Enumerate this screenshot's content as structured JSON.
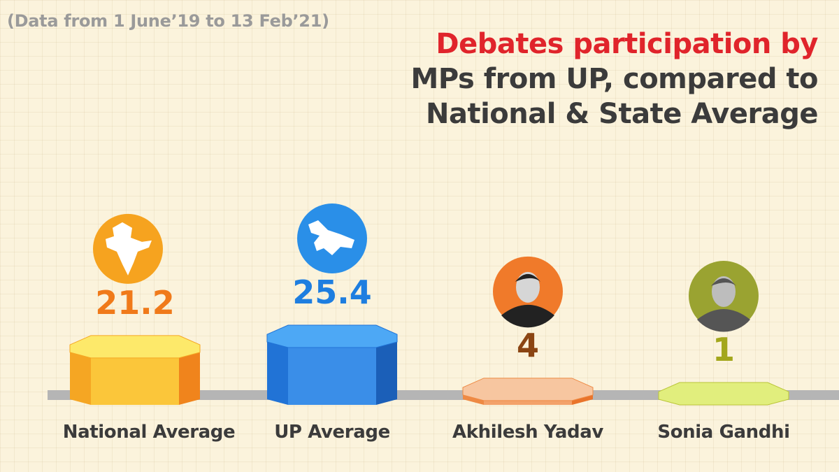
{
  "header": {
    "subtitle": "(Data from 1 June’19 to 13 Feb’21)",
    "title_line1": "Debates participation by",
    "title_line2": "MPs from UP, compared to",
    "title_line3": "National & State Average"
  },
  "colors": {
    "title_accent": "#e0242b",
    "text_dark": "#3b3b3b",
    "baseline": "#b5b5b5"
  },
  "chart_data": {
    "type": "bar",
    "categories": [
      "National Average",
      "UP Average",
      "Akhilesh Yadav",
      "Sonia Gandhi"
    ],
    "values": [
      21.2,
      25.4,
      4,
      1
    ],
    "value_labels": [
      "21.2",
      "25.4",
      "4",
      "1"
    ],
    "icons": [
      "india-map-icon",
      "uttar-pradesh-map-icon",
      "akhilesh-yadav-photo",
      "sonia-gandhi-photo"
    ],
    "colors": [
      "#f6a31f",
      "#2a8fe8",
      "#f07a2a",
      "#9aa331"
    ],
    "value_colors": [
      "#f07a1a",
      "#1e7ee0",
      "#8b4513",
      "#a3a71c"
    ],
    "bar_colors": [
      {
        "top": "#fde96a",
        "front": "#fbc63a",
        "side": "#f5a623",
        "edge": "#f0841c"
      },
      {
        "top": "#4da8f5",
        "front": "#3a8ee8",
        "side": "#2173d6",
        "edge": "#1b5fb8"
      },
      {
        "top": "#f7c6a0",
        "front": "#f3a26a",
        "side": "#ee8a44",
        "edge": "#e9742b"
      },
      {
        "top": "#e1ee7d",
        "front": "#cfdc52",
        "side": "#bac538",
        "edge": "#a9b22a"
      }
    ],
    "title": "Debates participation by MPs from UP, compared to National & State Average",
    "xlabel": "",
    "ylabel": "",
    "ylim": [
      0,
      25.4
    ]
  }
}
